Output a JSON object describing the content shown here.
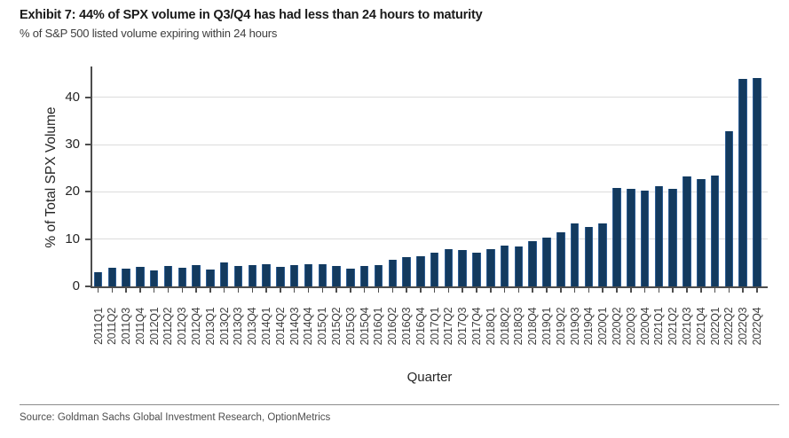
{
  "header": {
    "title": "Exhibit 7: 44% of SPX volume in Q3/Q4 has had less than 24 hours to maturity",
    "subtitle": "% of S&P 500 listed volume expiring within 24 hours"
  },
  "chart_data": {
    "type": "bar",
    "categories": [
      "2011Q1",
      "2011Q2",
      "2011Q3",
      "2011Q4",
      "2012Q1",
      "2012Q2",
      "2012Q3",
      "2012Q4",
      "2013Q1",
      "2013Q2",
      "2013Q3",
      "2013Q4",
      "2014Q1",
      "2014Q2",
      "2014Q3",
      "2014Q4",
      "2015Q1",
      "2015Q2",
      "2015Q3",
      "2015Q4",
      "2016Q1",
      "2016Q2",
      "2016Q3",
      "2016Q4",
      "2017Q1",
      "2017Q2",
      "2017Q3",
      "2017Q4",
      "2018Q1",
      "2018Q2",
      "2018Q3",
      "2018Q4",
      "2019Q1",
      "2019Q2",
      "2019Q3",
      "2019Q4",
      "2020Q1",
      "2020Q2",
      "2020Q3",
      "2020Q4",
      "2021Q1",
      "2021Q2",
      "2021Q3",
      "2021Q4",
      "2022Q1",
      "2022Q2",
      "2022Q3",
      "2022Q4"
    ],
    "values": [
      3.0,
      3.9,
      3.8,
      4.2,
      3.3,
      4.4,
      3.9,
      4.5,
      3.5,
      5.0,
      4.3,
      4.5,
      4.7,
      4.1,
      4.5,
      4.7,
      4.6,
      4.4,
      3.8,
      4.3,
      4.5,
      5.7,
      6.1,
      6.4,
      7.2,
      7.9,
      7.7,
      7.1,
      7.9,
      8.7,
      8.4,
      9.6,
      10.4,
      11.4,
      13.4,
      12.5,
      13.3,
      20.9,
      20.7,
      20.2,
      21.2,
      20.6,
      23.2,
      22.7,
      23.5,
      32.8,
      43.9,
      44.1
    ],
    "xlabel": "Quarter",
    "ylabel": "% of Total SPX Volume",
    "ylim": [
      0,
      46.5
    ],
    "yticks": [
      0,
      10,
      20,
      30,
      40
    ],
    "grid": true,
    "legend": "none"
  },
  "colors": {
    "bar": "#133a5e",
    "bar_edge": "#2d5d94",
    "grid": "#dcdcdc",
    "axis": "#4d4d4d",
    "title_text": "#1a1a1a",
    "body_text": "#404040"
  },
  "footer": {
    "source": "Source: Goldman Sachs Global Investment Research, OptionMetrics"
  }
}
